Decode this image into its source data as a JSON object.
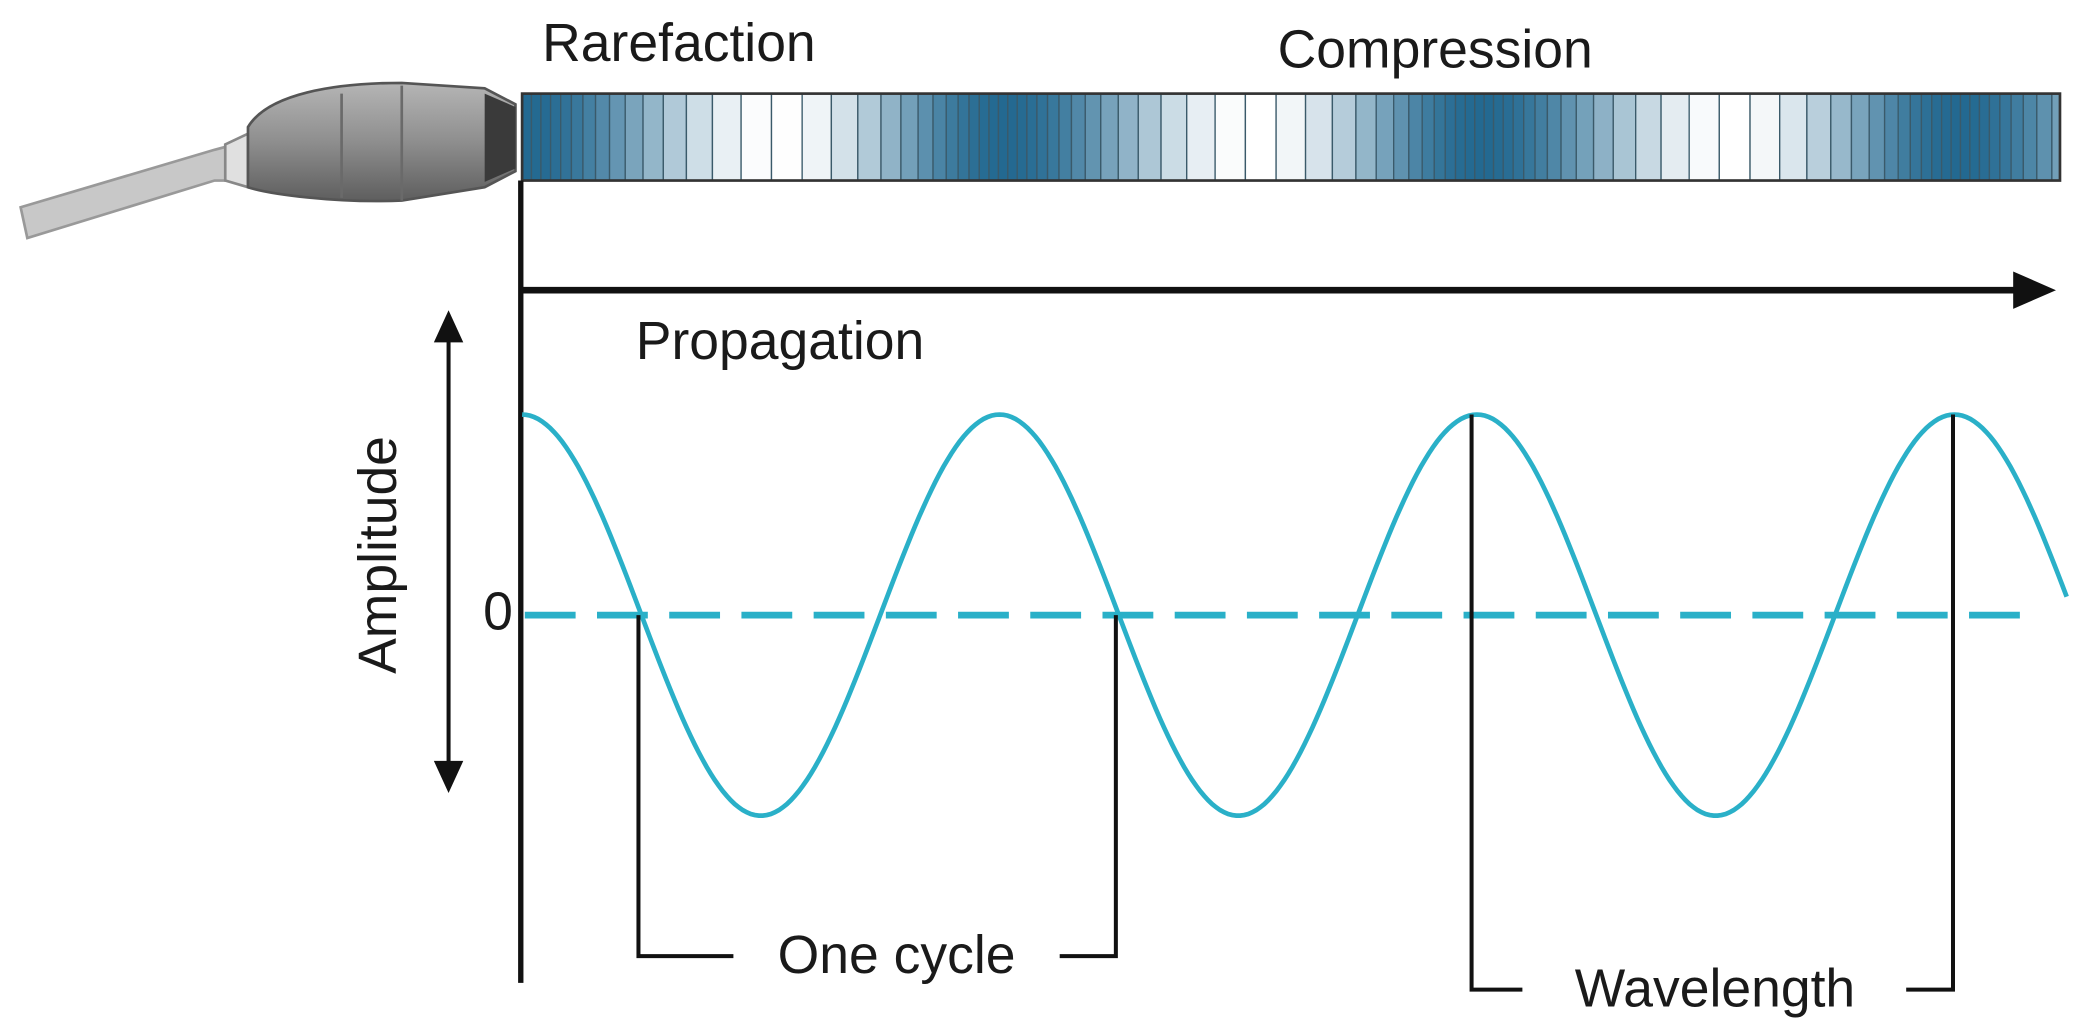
{
  "top_labels": {
    "rarefaction": "Rarefaction",
    "compression": "Compression"
  },
  "propagation": "Propagation",
  "amplitude": "Amplitude",
  "zero": "0",
  "one_cycle": "One cycle",
  "wavelength": "Wavelength"
}
